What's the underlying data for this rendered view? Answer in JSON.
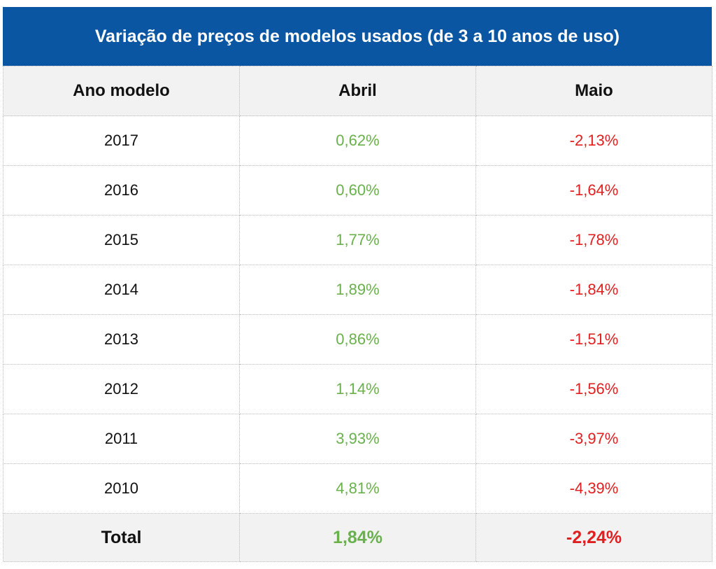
{
  "title": "Variação de preços de modelos usados (de 3 a 10 anos de uso)",
  "headers": {
    "year": "Ano modelo",
    "april": "Abril",
    "may": "Maio"
  },
  "rows": [
    {
      "year": "2017",
      "april": "0,62%",
      "may": "-2,13%"
    },
    {
      "year": "2016",
      "april": "0,60%",
      "may": "-1,64%"
    },
    {
      "year": "2015",
      "april": "1,77%",
      "may": "-1,78%"
    },
    {
      "year": "2014",
      "april": "1,89%",
      "may": "-1,84%"
    },
    {
      "year": "2013",
      "april": "0,86%",
      "may": "-1,51%"
    },
    {
      "year": "2012",
      "april": "1,14%",
      "may": "-1,56%"
    },
    {
      "year": "2011",
      "april": "3,93%",
      "may": "-3,97%"
    },
    {
      "year": "2010",
      "april": "4,81%",
      "may": "-4,39%"
    }
  ],
  "total": {
    "label": "Total",
    "april": "1,84%",
    "may": "-2,24%"
  },
  "colors": {
    "header_bg": "#0a56a3",
    "positive": "#6ab04c",
    "negative": "#e02020",
    "row_shade": "#f2f2f2"
  }
}
